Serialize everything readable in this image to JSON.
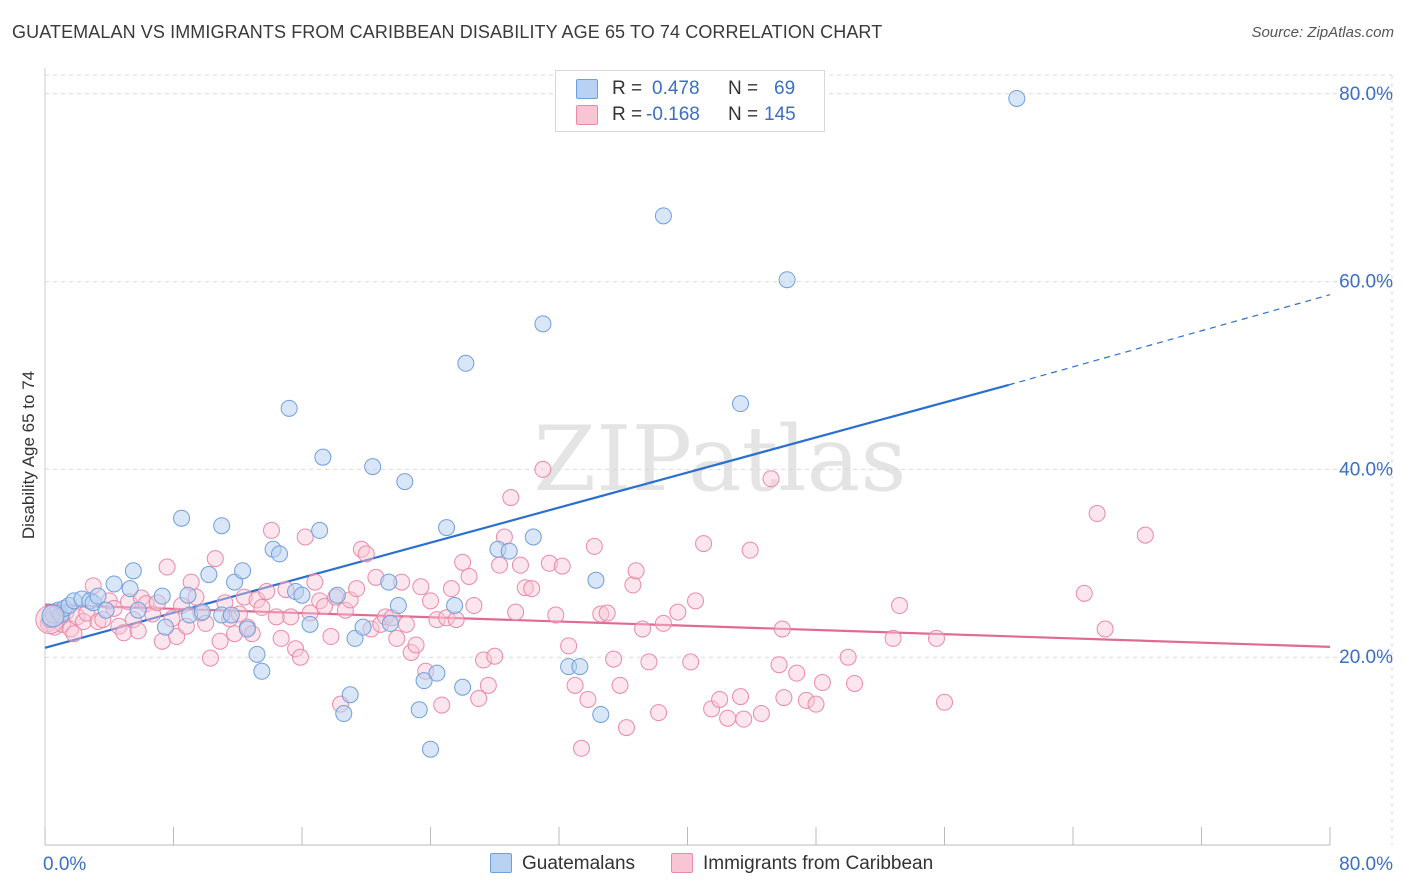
{
  "title": "GUATEMALAN VS IMMIGRANTS FROM CARIBBEAN DISABILITY AGE 65 TO 74 CORRELATION CHART",
  "source": "Source: ZipAtlas.com",
  "watermark": "ZIPatlas",
  "colors": {
    "blue_fill": "#b9d2f3",
    "blue_stroke": "#6f9fdc",
    "blue_line": "#2b6fd0",
    "pink_fill": "#f8c5d4",
    "pink_stroke": "#ea8aa8",
    "pink_line": "#e06a93",
    "value_text": "#3a6fc4",
    "grid": "#d9d9d9"
  },
  "stats": [
    {
      "r_label": "R =",
      "r_value": "0.478",
      "n_label": "N =",
      "n_value": "69"
    },
    {
      "r_label": "R =",
      "r_value": "-0.168",
      "n_label": "N =",
      "n_value": "145"
    }
  ],
  "legend": [
    {
      "name": "Guatemalans"
    },
    {
      "name": "Immigrants from Caribbean"
    }
  ],
  "chart_data": {
    "type": "scatter",
    "title": "GUATEMALAN VS IMMIGRANTS FROM CARIBBEAN DISABILITY AGE 65 TO 74 CORRELATION CHART",
    "xlabel": "",
    "ylabel": "Disability Age 65 to 74",
    "xlim": [
      0,
      80
    ],
    "ylim": [
      0,
      82
    ],
    "x_tick_labels": [
      {
        "value": 0,
        "label": "0.0%"
      },
      {
        "value": 80,
        "label": "80.0%"
      }
    ],
    "y_tick_labels": [
      {
        "value": 20,
        "label": "20.0%"
      },
      {
        "value": 40,
        "label": "40.0%"
      },
      {
        "value": 60,
        "label": "60.0%"
      },
      {
        "value": 80,
        "label": "80.0%"
      }
    ],
    "grid": true,
    "legend_position": "bottom-center",
    "series": [
      {
        "name": "Guatemalans",
        "r": 0.478,
        "n": 69,
        "trend": {
          "x_start": 0,
          "y_start": 21.0,
          "x_end": 60,
          "y_end": 49.0,
          "dashed_to_x": 80,
          "dashed_to_y": 58.6
        },
        "points": [
          [
            0.3,
            24.0
          ],
          [
            0.5,
            24.5
          ],
          [
            0.8,
            25.0
          ],
          [
            1.0,
            24.5
          ],
          [
            1.2,
            25.2
          ],
          [
            1.5,
            25.5
          ],
          [
            1.8,
            26.0
          ],
          [
            2.3,
            26.2
          ],
          [
            2.8,
            26.0
          ],
          [
            3.0,
            25.8
          ],
          [
            3.3,
            26.5
          ],
          [
            3.8,
            25.0
          ],
          [
            4.3,
            27.8
          ],
          [
            5.3,
            27.3
          ],
          [
            5.5,
            29.2
          ],
          [
            5.8,
            25.0
          ],
          [
            7.3,
            26.5
          ],
          [
            7.5,
            23.2
          ],
          [
            8.5,
            34.8
          ],
          [
            8.9,
            26.6
          ],
          [
            9.0,
            24.5
          ],
          [
            9.8,
            24.8
          ],
          [
            10.2,
            28.8
          ],
          [
            11.0,
            34.0
          ],
          [
            11.0,
            24.5
          ],
          [
            11.6,
            24.5
          ],
          [
            11.8,
            28.0
          ],
          [
            12.3,
            29.2
          ],
          [
            12.6,
            23.0
          ],
          [
            13.2,
            20.3
          ],
          [
            13.5,
            18.5
          ],
          [
            14.2,
            31.5
          ],
          [
            14.6,
            31.0
          ],
          [
            15.2,
            46.5
          ],
          [
            15.6,
            27.0
          ],
          [
            16.0,
            26.6
          ],
          [
            16.5,
            23.5
          ],
          [
            17.1,
            33.5
          ],
          [
            17.3,
            41.3
          ],
          [
            18.2,
            26.6
          ],
          [
            18.6,
            14.0
          ],
          [
            19.0,
            16.0
          ],
          [
            19.3,
            22.0
          ],
          [
            19.8,
            23.2
          ],
          [
            20.4,
            40.3
          ],
          [
            21.4,
            28.0
          ],
          [
            21.5,
            23.6
          ],
          [
            22.0,
            25.5
          ],
          [
            22.4,
            38.7
          ],
          [
            23.3,
            14.4
          ],
          [
            23.6,
            17.5
          ],
          [
            24.0,
            10.2
          ],
          [
            24.4,
            18.3
          ],
          [
            25.0,
            33.8
          ],
          [
            25.5,
            25.5
          ],
          [
            26.0,
            16.8
          ],
          [
            26.2,
            51.3
          ],
          [
            28.2,
            31.5
          ],
          [
            28.9,
            31.3
          ],
          [
            30.4,
            32.8
          ],
          [
            31.0,
            55.5
          ],
          [
            32.6,
            19.0
          ],
          [
            33.3,
            19.0
          ],
          [
            34.3,
            28.2
          ],
          [
            34.6,
            13.9
          ],
          [
            38.5,
            67.0
          ],
          [
            43.3,
            47.0
          ],
          [
            46.2,
            60.2
          ],
          [
            60.5,
            79.5
          ]
        ]
      },
      {
        "name": "Immigrants from Caribbean",
        "r": -0.168,
        "n": 145,
        "trend": {
          "x_start": 0,
          "y_start": 25.6,
          "x_end": 80,
          "y_end": 21.1
        },
        "points": [
          [
            0.2,
            23.6
          ],
          [
            0.4,
            24.0
          ],
          [
            0.6,
            23.2
          ],
          [
            0.9,
            24.4
          ],
          [
            1.1,
            23.5
          ],
          [
            1.3,
            24.8
          ],
          [
            1.6,
            23.0
          ],
          [
            1.8,
            22.5
          ],
          [
            2.0,
            24.3
          ],
          [
            2.4,
            23.8
          ],
          [
            2.6,
            24.7
          ],
          [
            3.0,
            27.6
          ],
          [
            3.3,
            23.8
          ],
          [
            3.6,
            24.0
          ],
          [
            4.0,
            26.0
          ],
          [
            4.3,
            25.2
          ],
          [
            4.6,
            23.3
          ],
          [
            4.9,
            22.6
          ],
          [
            5.2,
            25.9
          ],
          [
            5.5,
            24.0
          ],
          [
            5.8,
            22.8
          ],
          [
            6.0,
            26.3
          ],
          [
            6.3,
            25.7
          ],
          [
            6.7,
            24.6
          ],
          [
            7.0,
            25.8
          ],
          [
            7.3,
            21.7
          ],
          [
            7.6,
            29.6
          ],
          [
            7.9,
            24.1
          ],
          [
            8.2,
            22.2
          ],
          [
            8.5,
            25.5
          ],
          [
            8.8,
            23.3
          ],
          [
            9.1,
            28.0
          ],
          [
            9.4,
            26.4
          ],
          [
            9.7,
            24.7
          ],
          [
            10.0,
            23.6
          ],
          [
            10.3,
            19.9
          ],
          [
            10.6,
            30.5
          ],
          [
            10.9,
            21.7
          ],
          [
            11.2,
            25.8
          ],
          [
            11.5,
            24.1
          ],
          [
            11.8,
            22.5
          ],
          [
            12.1,
            24.6
          ],
          [
            12.4,
            26.4
          ],
          [
            12.6,
            23.2
          ],
          [
            12.9,
            22.5
          ],
          [
            13.2,
            26.1
          ],
          [
            13.5,
            25.3
          ],
          [
            13.8,
            27.0
          ],
          [
            14.1,
            33.5
          ],
          [
            14.4,
            24.3
          ],
          [
            14.7,
            22.0
          ],
          [
            15.0,
            27.2
          ],
          [
            15.3,
            24.3
          ],
          [
            15.6,
            20.9
          ],
          [
            15.9,
            20.0
          ],
          [
            16.2,
            32.8
          ],
          [
            16.5,
            24.7
          ],
          [
            16.8,
            28.0
          ],
          [
            17.1,
            26.0
          ],
          [
            17.4,
            25.4
          ],
          [
            17.8,
            22.2
          ],
          [
            18.1,
            26.4
          ],
          [
            18.4,
            15.0
          ],
          [
            18.7,
            25.0
          ],
          [
            19.0,
            26.1
          ],
          [
            19.4,
            27.3
          ],
          [
            19.7,
            31.5
          ],
          [
            20.0,
            31.0
          ],
          [
            20.3,
            23.0
          ],
          [
            20.6,
            28.5
          ],
          [
            20.9,
            23.5
          ],
          [
            21.2,
            24.3
          ],
          [
            21.6,
            24.2
          ],
          [
            21.9,
            22.0
          ],
          [
            22.2,
            28.0
          ],
          [
            22.5,
            23.5
          ],
          [
            22.8,
            20.5
          ],
          [
            23.1,
            21.3
          ],
          [
            23.4,
            27.5
          ],
          [
            23.7,
            18.5
          ],
          [
            24.0,
            26.0
          ],
          [
            24.4,
            24.0
          ],
          [
            24.7,
            14.9
          ],
          [
            25.0,
            24.2
          ],
          [
            25.3,
            27.3
          ],
          [
            25.6,
            24.0
          ],
          [
            26.0,
            30.1
          ],
          [
            26.4,
            28.6
          ],
          [
            26.7,
            25.5
          ],
          [
            27.0,
            15.6
          ],
          [
            27.3,
            19.7
          ],
          [
            27.6,
            17.0
          ],
          [
            28.0,
            20.1
          ],
          [
            28.3,
            29.8
          ],
          [
            28.6,
            32.8
          ],
          [
            29.0,
            37.0
          ],
          [
            29.3,
            24.8
          ],
          [
            29.6,
            29.8
          ],
          [
            29.9,
            27.4
          ],
          [
            30.3,
            27.3
          ],
          [
            31.0,
            40.0
          ],
          [
            31.4,
            30.0
          ],
          [
            31.8,
            24.5
          ],
          [
            32.2,
            29.7
          ],
          [
            32.6,
            21.2
          ],
          [
            33.0,
            17.0
          ],
          [
            33.4,
            10.3
          ],
          [
            33.8,
            15.5
          ],
          [
            34.2,
            31.8
          ],
          [
            34.6,
            24.6
          ],
          [
            35.0,
            24.7
          ],
          [
            35.4,
            19.8
          ],
          [
            35.8,
            17.0
          ],
          [
            36.2,
            12.5
          ],
          [
            36.6,
            27.7
          ],
          [
            36.8,
            29.2
          ],
          [
            37.2,
            23.0
          ],
          [
            37.6,
            19.5
          ],
          [
            38.2,
            14.1
          ],
          [
            38.5,
            23.6
          ],
          [
            39.4,
            24.8
          ],
          [
            40.2,
            19.5
          ],
          [
            40.5,
            26.0
          ],
          [
            41.0,
            32.1
          ],
          [
            41.5,
            14.5
          ],
          [
            42.0,
            15.5
          ],
          [
            42.5,
            13.5
          ],
          [
            43.3,
            15.8
          ],
          [
            43.5,
            13.4
          ],
          [
            43.9,
            31.4
          ],
          [
            44.6,
            14.0
          ],
          [
            45.2,
            39.0
          ],
          [
            45.7,
            19.2
          ],
          [
            45.9,
            23.0
          ],
          [
            46.0,
            15.7
          ],
          [
            46.8,
            18.3
          ],
          [
            47.4,
            15.4
          ],
          [
            48.0,
            15.0
          ],
          [
            48.4,
            17.3
          ],
          [
            50.0,
            20.0
          ],
          [
            50.4,
            17.2
          ],
          [
            52.8,
            22.0
          ],
          [
            53.2,
            25.5
          ],
          [
            55.5,
            22.0
          ],
          [
            56.0,
            15.2
          ],
          [
            64.7,
            26.8
          ],
          [
            65.5,
            35.3
          ],
          [
            66.0,
            23.0
          ],
          [
            68.5,
            33.0
          ]
        ]
      }
    ]
  }
}
